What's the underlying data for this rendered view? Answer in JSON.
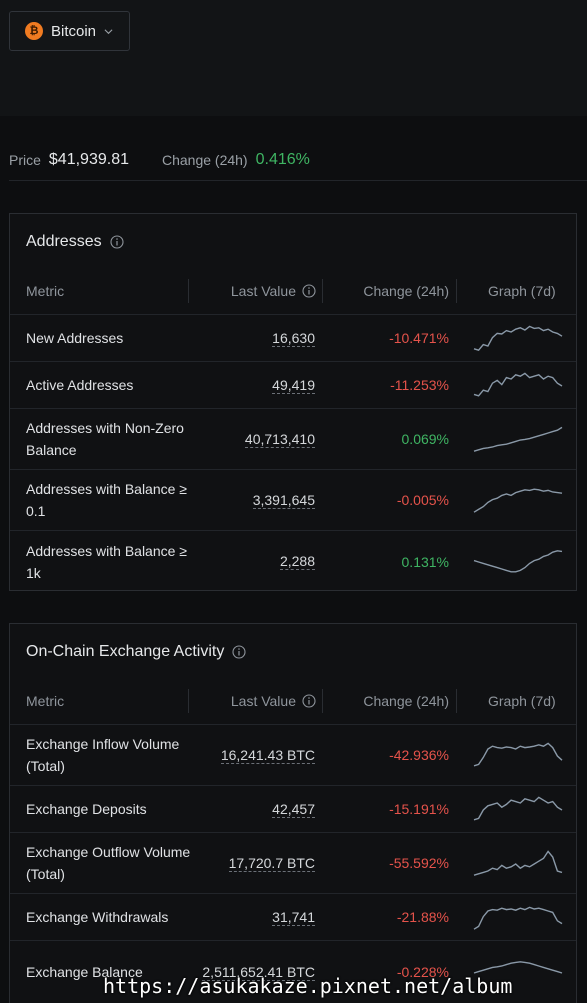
{
  "asset_selector": {
    "label": "Bitcoin",
    "icon": "bitcoin-icon"
  },
  "price": {
    "label": "Price",
    "value": "$41,939.81",
    "change_label": "Change (24h)",
    "change_value": "0.416%"
  },
  "colors": {
    "negative": "#e5534b",
    "positive": "#3fb563",
    "bitcoin": "#f07b21",
    "sparkline": "#8a99a8"
  },
  "table_headers": {
    "metric": "Metric",
    "last_value": "Last Value",
    "change": "Change (24h)",
    "graph": "Graph (7d)"
  },
  "addresses": {
    "title": "Addresses",
    "rows": [
      {
        "metric": "New Addresses",
        "value": "16,630",
        "change": "-10.471%",
        "trend": "negative",
        "spark": [
          0.15,
          0.1,
          0.3,
          0.25,
          0.55,
          0.7,
          0.68,
          0.8,
          0.75,
          0.85,
          0.9,
          0.82,
          0.95,
          0.88,
          0.9,
          0.8,
          0.85,
          0.75,
          0.7,
          0.6
        ]
      },
      {
        "metric": "Active Addresses",
        "value": "49,419",
        "change": "-11.253%",
        "trend": "negative",
        "spark": [
          0.2,
          0.15,
          0.35,
          0.3,
          0.6,
          0.7,
          0.55,
          0.8,
          0.75,
          0.9,
          0.85,
          0.95,
          0.8,
          0.85,
          0.9,
          0.75,
          0.85,
          0.8,
          0.6,
          0.5
        ]
      },
      {
        "metric": "Addresses with Non-Zero Balance",
        "value": "40,713,410",
        "change": "0.069%",
        "trend": "positive",
        "spark": [
          0.1,
          0.15,
          0.2,
          0.22,
          0.25,
          0.3,
          0.33,
          0.35,
          0.4,
          0.45,
          0.5,
          0.52,
          0.55,
          0.6,
          0.65,
          0.7,
          0.75,
          0.8,
          0.85,
          0.95
        ]
      },
      {
        "metric": "Addresses with Balance ≥ 0.1",
        "value": "3,391,645",
        "change": "-0.005%",
        "trend": "negative",
        "spark": [
          0.1,
          0.2,
          0.3,
          0.45,
          0.55,
          0.6,
          0.7,
          0.75,
          0.7,
          0.8,
          0.85,
          0.9,
          0.88,
          0.92,
          0.9,
          0.85,
          0.88,
          0.82,
          0.8,
          0.78
        ]
      },
      {
        "metric": "Addresses with Balance ≥ 1k",
        "value": "2,288",
        "change": "0.131%",
        "trend": "positive",
        "spark": [
          0.55,
          0.5,
          0.45,
          0.4,
          0.35,
          0.3,
          0.25,
          0.2,
          0.15,
          0.15,
          0.2,
          0.3,
          0.45,
          0.55,
          0.6,
          0.7,
          0.75,
          0.85,
          0.9,
          0.88
        ]
      }
    ]
  },
  "exchange": {
    "title": "On-Chain Exchange Activity",
    "rows": [
      {
        "metric": "Exchange Inflow Volume (Total)",
        "value": "16,241.43 BTC",
        "change": "-42.936%",
        "trend": "negative",
        "spark": [
          0.15,
          0.2,
          0.45,
          0.75,
          0.85,
          0.8,
          0.78,
          0.82,
          0.8,
          0.75,
          0.85,
          0.8,
          0.82,
          0.85,
          0.9,
          0.85,
          0.95,
          0.8,
          0.5,
          0.35
        ]
      },
      {
        "metric": "Exchange Deposits",
        "value": "42,457",
        "change": "-15.191%",
        "trend": "negative",
        "spark": [
          0.15,
          0.2,
          0.5,
          0.65,
          0.7,
          0.75,
          0.6,
          0.7,
          0.85,
          0.8,
          0.75,
          0.9,
          0.85,
          0.8,
          0.95,
          0.85,
          0.75,
          0.8,
          0.6,
          0.5
        ]
      },
      {
        "metric": "Exchange Outflow Volume (Total)",
        "value": "17,720.7 BTC",
        "change": "-55.592%",
        "trend": "negative",
        "spark": [
          0.1,
          0.15,
          0.2,
          0.25,
          0.35,
          0.3,
          0.45,
          0.35,
          0.4,
          0.5,
          0.35,
          0.45,
          0.4,
          0.5,
          0.6,
          0.7,
          0.95,
          0.75,
          0.25,
          0.2
        ]
      },
      {
        "metric": "Exchange Withdrawals",
        "value": "31,741",
        "change": "-21.88%",
        "trend": "negative",
        "spark": [
          0.1,
          0.2,
          0.55,
          0.75,
          0.8,
          0.78,
          0.85,
          0.8,
          0.82,
          0.78,
          0.85,
          0.8,
          0.88,
          0.82,
          0.85,
          0.8,
          0.75,
          0.7,
          0.4,
          0.3
        ]
      },
      {
        "metric": "Exchange Balance",
        "value": "2,511,652.41 BTC",
        "change": "-0.228%",
        "trend": "negative",
        "spark": [
          0.5,
          0.55,
          0.6,
          0.65,
          0.7,
          0.72,
          0.75,
          0.8,
          0.85,
          0.88,
          0.9,
          0.88,
          0.85,
          0.8,
          0.75,
          0.7,
          0.65,
          0.6,
          0.55,
          0.5
        ]
      }
    ]
  },
  "watermark": "https://asukakaze.pixnet.net/album"
}
